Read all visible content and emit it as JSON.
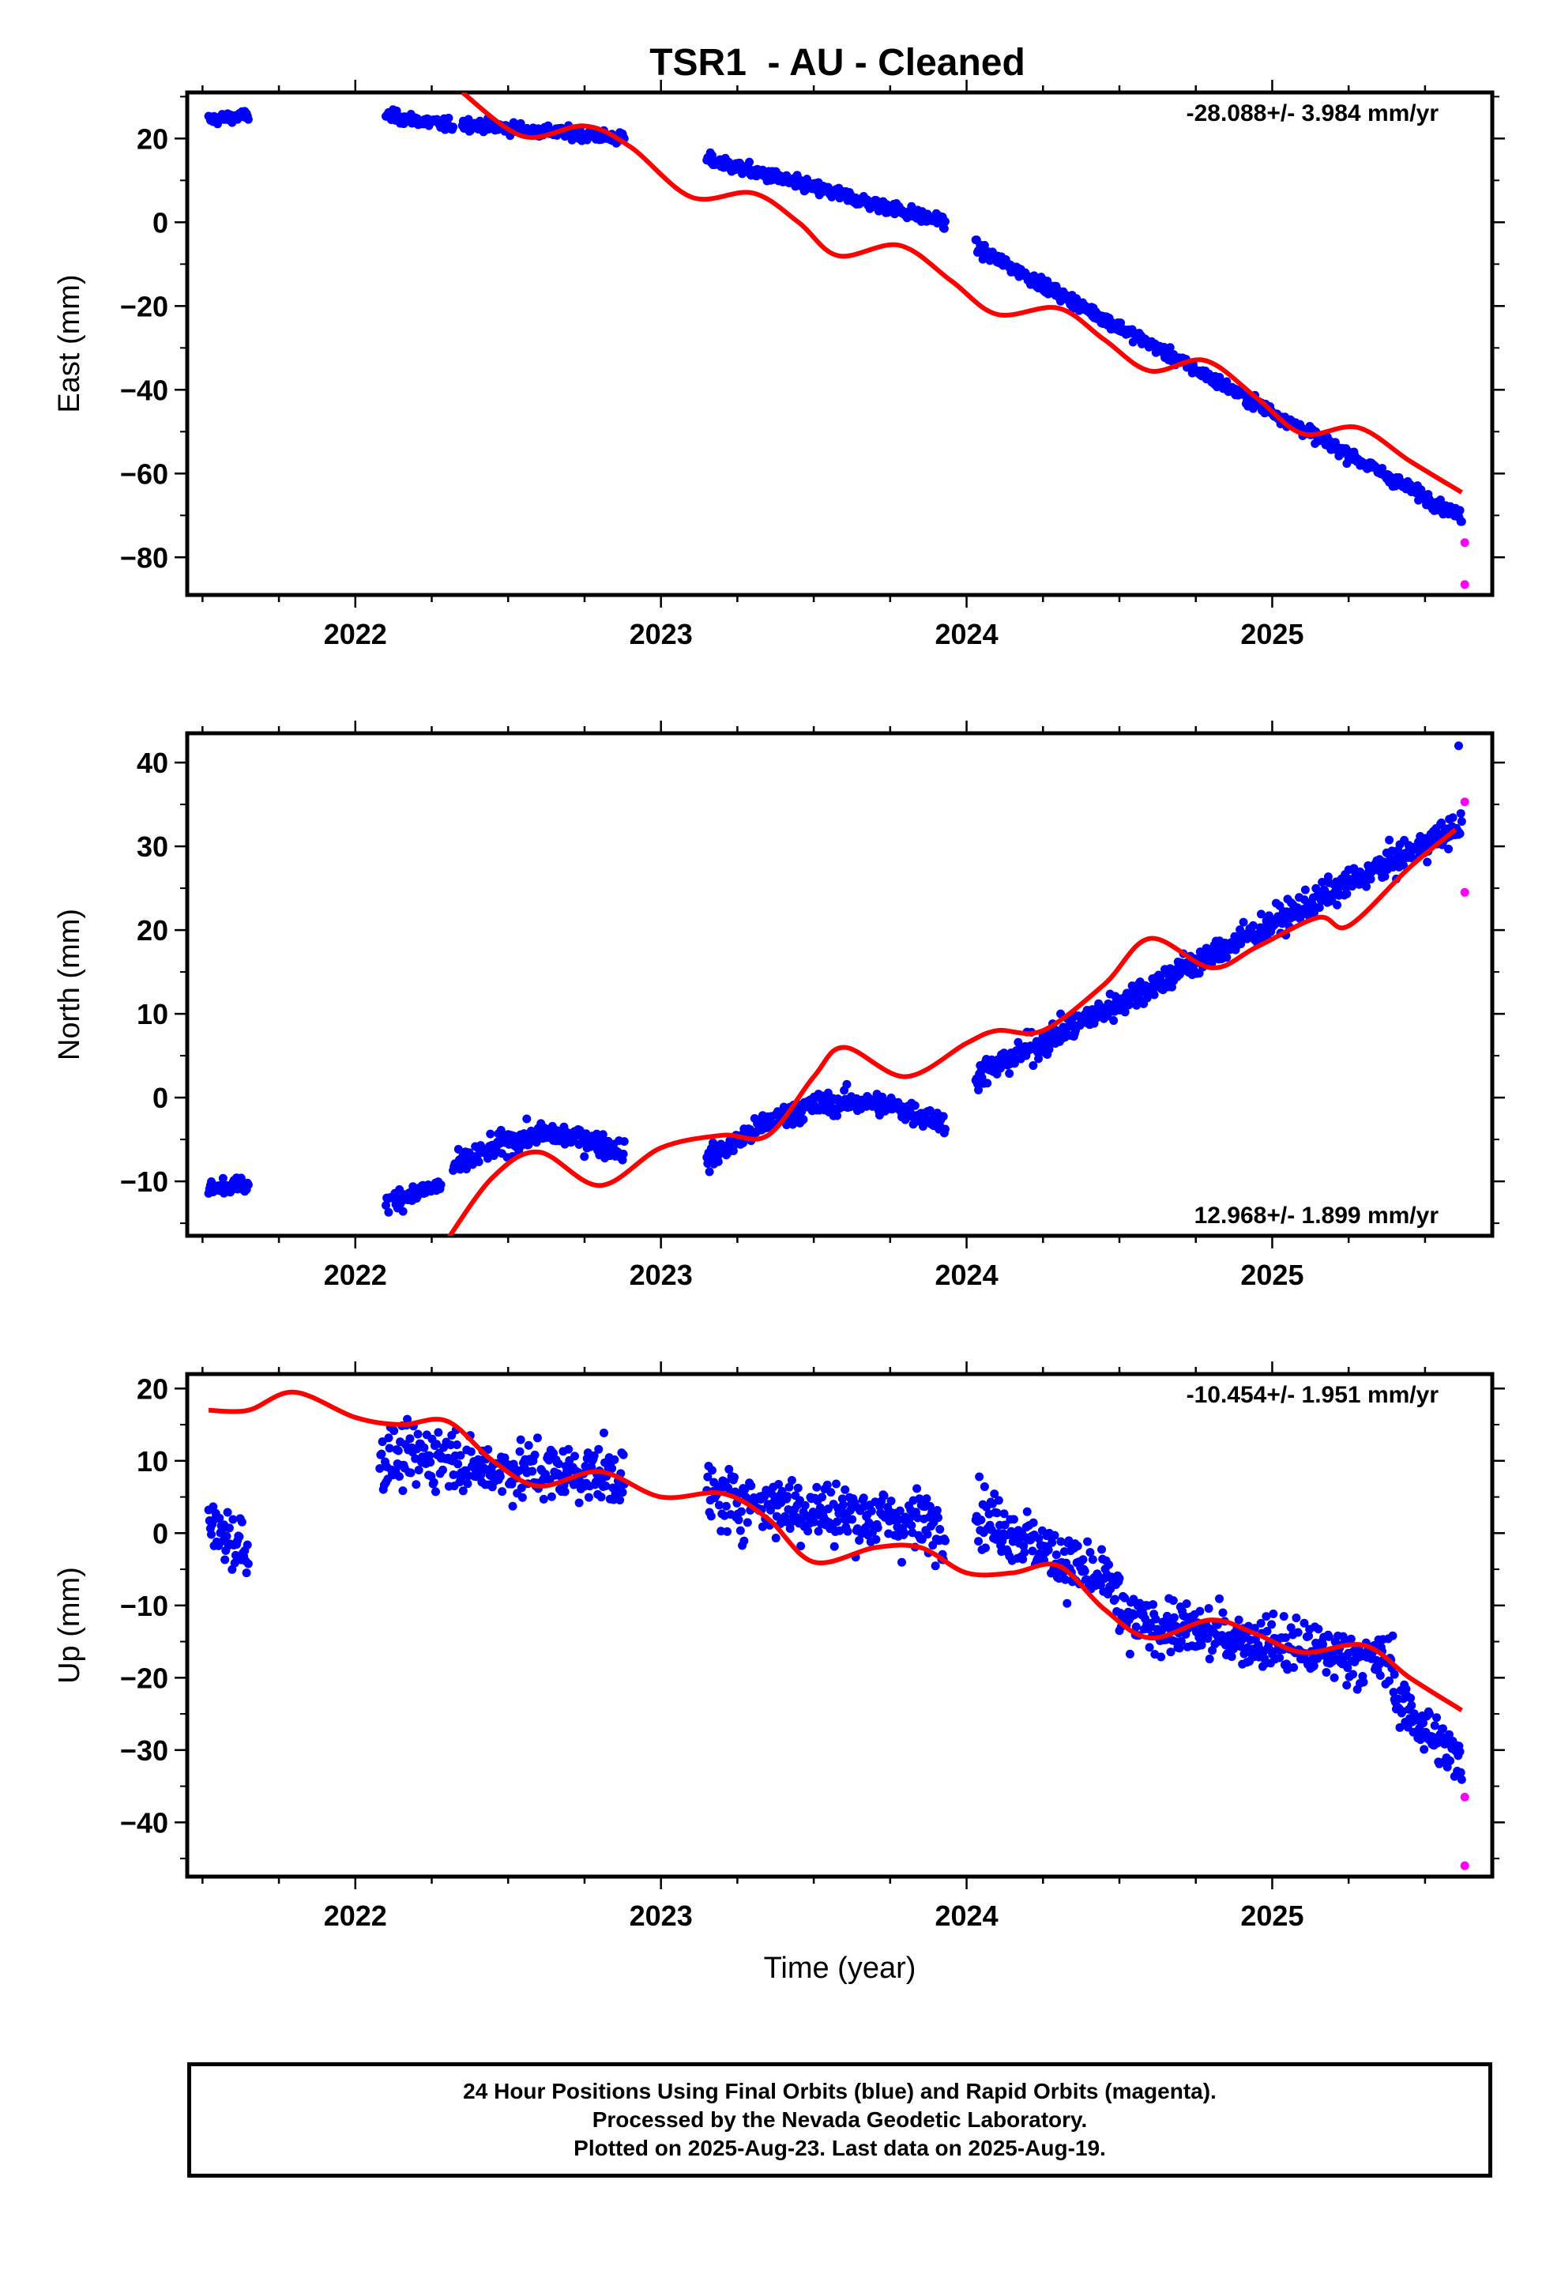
{
  "title": "TSR1  - AU - Cleaned",
  "footer": {
    "line1": "24 Hour Positions Using Final Orbits (blue) and Rapid Orbits (magenta).",
    "line2": "Processed by the Nevada Geodetic Laboratory.",
    "line3": "Plotted on 2025-Aug-23. Last data on 2025-Aug-19."
  },
  "colors": {
    "final": "#0000ff",
    "rapid": "#ff00ff",
    "model": "#ff0000",
    "axis": "#000000"
  },
  "chart_data": [
    {
      "type": "scatter",
      "ylabel": "East (mm)",
      "xlabel": "",
      "rate_label": "-28.088+/- 3.984 mm/yr",
      "rate_position": "top-right",
      "xlim": [
        2021.45,
        2025.72
      ],
      "ylim": [
        -89,
        31
      ],
      "x_ticks": [
        2022,
        2023,
        2024,
        2025
      ],
      "y_ticks": [
        20,
        0,
        -20,
        -40,
        -60,
        -80
      ],
      "y_tick_labels": [
        "20",
        "0",
        "−20",
        "−40",
        "−60",
        "−80"
      ],
      "series": [
        {
          "role": "final",
          "segments": [
            {
              "x0": 2021.52,
              "x1": 2021.65,
              "y0": 24.5,
              "y1": 25.5,
              "noise": 1.2
            },
            {
              "x0": 2022.1,
              "x1": 2022.32,
              "y0": 25.5,
              "y1": 23.0,
              "noise": 1.3
            },
            {
              "x0": 2022.35,
              "x1": 2022.88,
              "y0": 23.5,
              "y1": 20.0,
              "noise": 1.3
            },
            {
              "x0": 2023.15,
              "x1": 2023.93,
              "y0": 15.0,
              "y1": 0.0,
              "noise": 1.5
            },
            {
              "x0": 2024.03,
              "x1": 2025.62,
              "y0": -6.0,
              "y1": -70.5,
              "noise": 1.4
            }
          ]
        },
        {
          "role": "rapid",
          "points": [
            [
              2025.63,
              -76.5
            ],
            [
              2025.63,
              -86.5
            ]
          ]
        }
      ],
      "model": {
        "x0": 2022.35,
        "x1": 2025.62,
        "points": [
          [
            2022.35,
            31.0
          ],
          [
            2022.55,
            20.5
          ],
          [
            2022.75,
            23.0
          ],
          [
            2022.9,
            18.0
          ],
          [
            2023.1,
            6.0
          ],
          [
            2023.3,
            7.0
          ],
          [
            2023.45,
            0.0
          ],
          [
            2023.58,
            -8.0
          ],
          [
            2023.78,
            -5.5
          ],
          [
            2023.95,
            -14.0
          ],
          [
            2024.1,
            -22.0
          ],
          [
            2024.3,
            -20.5
          ],
          [
            2024.45,
            -28.0
          ],
          [
            2024.6,
            -35.5
          ],
          [
            2024.78,
            -33.0
          ],
          [
            2024.95,
            -42.0
          ],
          [
            2025.1,
            -50.5
          ],
          [
            2025.28,
            -49.0
          ],
          [
            2025.45,
            -57.0
          ],
          [
            2025.62,
            -64.5
          ]
        ]
      }
    },
    {
      "type": "scatter",
      "ylabel": "North (mm)",
      "xlabel": "",
      "rate_label": "12.968+/- 1.899 mm/yr",
      "rate_position": "bottom-right",
      "xlim": [
        2021.45,
        2025.72
      ],
      "ylim": [
        -16.5,
        43.5
      ],
      "x_ticks": [
        2022,
        2023,
        2024,
        2025
      ],
      "y_ticks": [
        40,
        30,
        20,
        10,
        0,
        -10
      ],
      "y_tick_labels": [
        "40",
        "30",
        "20",
        "10",
        "0",
        "−10"
      ],
      "series": [
        {
          "role": "final",
          "segments": [
            {
              "x0": 2021.52,
              "x1": 2021.65,
              "y0": -10.5,
              "y1": -10.5,
              "noise": 0.9
            },
            {
              "x0": 2022.1,
              "x1": 2022.28,
              "y0": -12.5,
              "y1": -10.5,
              "noise": 1.2
            },
            {
              "x0": 2022.32,
              "x1": 2022.88,
              "y0": -8.5,
              "y1": -6.5,
              "noise": 1.3,
              "bump": 3.0
            },
            {
              "x0": 2023.15,
              "x1": 2023.93,
              "y0": -7.5,
              "y1": -3.0,
              "noise": 1.3,
              "bump": 4.5
            },
            {
              "x0": 2024.03,
              "x1": 2025.62,
              "y0": 2.5,
              "y1": 32.5,
              "noise": 1.6
            }
          ]
        },
        {
          "role": "final",
          "points": [
            [
              2025.61,
              42.0
            ]
          ]
        },
        {
          "role": "rapid",
          "points": [
            [
              2025.63,
              35.3
            ],
            [
              2025.63,
              24.5
            ]
          ]
        }
      ],
      "model": {
        "x0": 2022.3,
        "x1": 2025.62,
        "points": [
          [
            2022.3,
            -17.0
          ],
          [
            2022.45,
            -9.5
          ],
          [
            2022.6,
            -6.5
          ],
          [
            2022.8,
            -10.5
          ],
          [
            2023.0,
            -6.0
          ],
          [
            2023.2,
            -4.5
          ],
          [
            2023.35,
            -4.5
          ],
          [
            2023.5,
            2.5
          ],
          [
            2023.6,
            6.0
          ],
          [
            2023.8,
            2.5
          ],
          [
            2024.0,
            6.5
          ],
          [
            2024.1,
            8.0
          ],
          [
            2024.25,
            8.0
          ],
          [
            2024.45,
            13.5
          ],
          [
            2024.6,
            19.0
          ],
          [
            2024.8,
            15.5
          ],
          [
            2024.95,
            18.0
          ],
          [
            2025.15,
            21.5
          ],
          [
            2025.25,
            20.5
          ],
          [
            2025.45,
            27.5
          ],
          [
            2025.6,
            32.0
          ]
        ]
      }
    },
    {
      "type": "scatter",
      "ylabel": "Up (mm)",
      "xlabel": "Time (year)",
      "rate_label": "-10.454+/- 1.951 mm/yr",
      "rate_position": "top-right",
      "xlim": [
        2021.45,
        2025.72
      ],
      "ylim": [
        -47.5,
        22
      ],
      "x_ticks": [
        2022,
        2023,
        2024,
        2025
      ],
      "y_ticks": [
        20,
        10,
        0,
        -10,
        -20,
        -30,
        -40
      ],
      "y_tick_labels": [
        "20",
        "10",
        "0",
        "−10",
        "−20",
        "−30",
        "−40"
      ],
      "series": [
        {
          "role": "final",
          "segments": [
            {
              "x0": 2021.52,
              "x1": 2021.65,
              "y0": 1.0,
              "y1": -2.0,
              "noise": 4.0
            },
            {
              "x0": 2022.08,
              "x1": 2022.35,
              "y0": 10.0,
              "y1": 11.0,
              "noise": 4.0
            },
            {
              "x0": 2022.35,
              "x1": 2022.88,
              "y0": 9.0,
              "y1": 8.0,
              "noise": 3.8
            },
            {
              "x0": 2023.15,
              "x1": 2023.93,
              "y0": 5.0,
              "y1": 1.0,
              "noise": 4.2
            },
            {
              "x0": 2024.03,
              "x1": 2024.5,
              "y0": 3.0,
              "y1": -8.0,
              "noise": 3.8
            },
            {
              "x0": 2024.5,
              "x1": 2025.4,
              "y0": -12.0,
              "y1": -18.0,
              "noise": 3.5
            },
            {
              "x0": 2025.4,
              "x1": 2025.62,
              "y0": -23.0,
              "y1": -32.0,
              "noise": 3.5
            }
          ]
        },
        {
          "role": "rapid",
          "points": [
            [
              2025.63,
              -36.5
            ],
            [
              2025.63,
              -46.0
            ]
          ]
        }
      ],
      "model": {
        "x0": 2021.52,
        "x1": 2025.62,
        "points": [
          [
            2021.52,
            17.0
          ],
          [
            2021.65,
            17.0
          ],
          [
            2021.8,
            19.5
          ],
          [
            2022.0,
            16.0
          ],
          [
            2022.15,
            15.0
          ],
          [
            2022.3,
            15.5
          ],
          [
            2022.45,
            10.0
          ],
          [
            2022.6,
            6.5
          ],
          [
            2022.8,
            8.5
          ],
          [
            2023.0,
            5.0
          ],
          [
            2023.2,
            5.5
          ],
          [
            2023.35,
            2.0
          ],
          [
            2023.5,
            -4.0
          ],
          [
            2023.7,
            -2.0
          ],
          [
            2023.85,
            -2.0
          ],
          [
            2024.0,
            -5.5
          ],
          [
            2024.15,
            -5.5
          ],
          [
            2024.3,
            -4.5
          ],
          [
            2024.45,
            -10.5
          ],
          [
            2024.6,
            -14.5
          ],
          [
            2024.8,
            -12.0
          ],
          [
            2024.95,
            -14.0
          ],
          [
            2025.1,
            -16.5
          ],
          [
            2025.3,
            -15.5
          ],
          [
            2025.45,
            -20.0
          ],
          [
            2025.62,
            -24.5
          ]
        ]
      }
    }
  ]
}
